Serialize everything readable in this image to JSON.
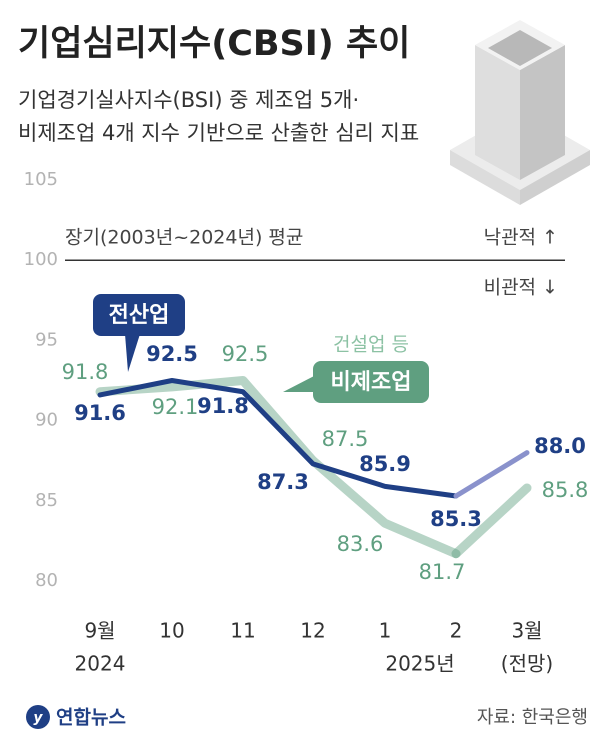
{
  "chart_data": {
    "type": "line",
    "title": "기업심리지수(CBSI) 추이",
    "subtitle": [
      "기업경기실사지수(BSI) 중 제조업 5개·",
      "비제조업 4개 지수 기반으로 산출한 심리 지표"
    ],
    "categories": [
      "9월",
      "10",
      "11",
      "12",
      "1",
      "2",
      "3월"
    ],
    "x_sublabels": [
      "2024",
      "2025년",
      "(전망)"
    ],
    "series": [
      {
        "name": "전산업",
        "color": "#1f3f85",
        "forecast_color": "#8a92cc",
        "values": [
          91.6,
          92.5,
          91.8,
          87.3,
          85.9,
          85.3,
          88.0
        ],
        "value_labels": [
          "91.6",
          "92.5",
          "91.8",
          "87.3",
          "85.9",
          "85.3",
          "88.0"
        ]
      },
      {
        "name": "비제조업",
        "color": "#5f9f80",
        "forecast_color": "#5f9f80",
        "values": [
          91.8,
          92.1,
          92.5,
          87.5,
          83.6,
          81.7,
          85.8
        ],
        "value_labels": [
          "91.8",
          "92.1",
          "92.5",
          "87.5",
          "83.6",
          "81.7",
          "85.8"
        ]
      }
    ],
    "series_note": "건설업 등",
    "ylim": [
      80,
      105
    ],
    "yticks": [
      80,
      85,
      90,
      95,
      100,
      105
    ],
    "grid": false,
    "reference_line": 100,
    "reference_label": "장기(2003년~2024년) 평균",
    "above_label": "낙관적 ↑",
    "below_label": "비관적 ↓",
    "source": "자료: 한국은행",
    "logo": "연합뉴스"
  }
}
